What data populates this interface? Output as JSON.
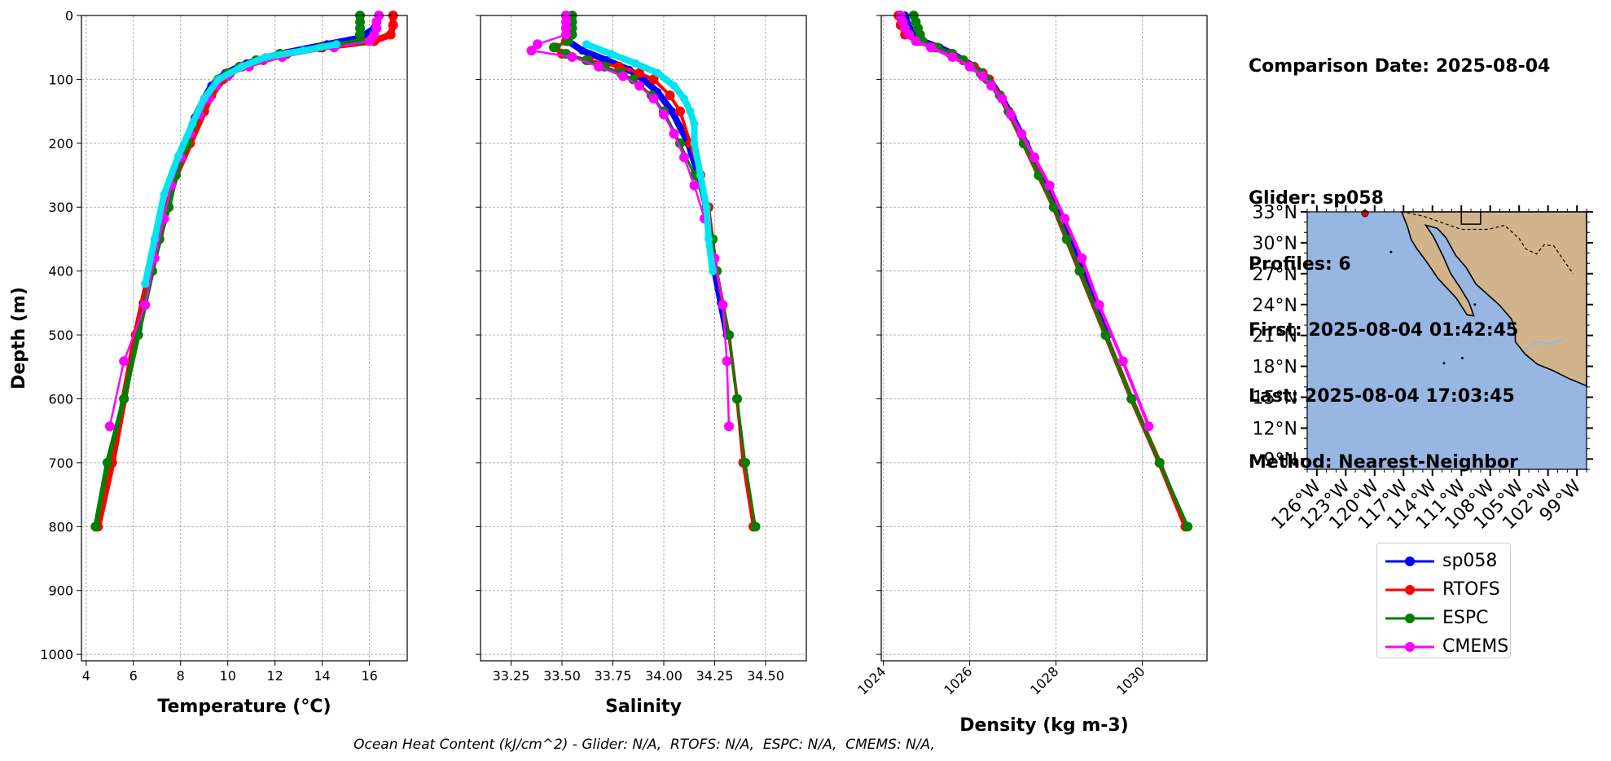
{
  "info": {
    "comparison": "Comparison Date: 2025-08-04",
    "glider": "Glider: sp058",
    "profiles": "Profiles: 6",
    "first": "First: 2025-08-04 01:42:45",
    "last": "Last: 2025-08-04 17:03:45",
    "method": "Method: Nearest-Neighbor"
  },
  "footnote": "Ocean Heat Content (kJ/cm^2) - Glider: N/A,  RTOFS: N/A,  ESPC: N/A,  CMEMS: N/A,",
  "legend": [
    {
      "name": "sp058",
      "color": "#0000ff"
    },
    {
      "name": "RTOFS",
      "color": "#ff0000"
    },
    {
      "name": "ESPC",
      "color": "#008000"
    },
    {
      "name": "CMEMS",
      "color": "#ff00ff"
    }
  ],
  "chart_data": [
    {
      "type": "line",
      "xlabel": "Temperature (°C)",
      "ylabel": "Depth (m)",
      "xlim": [
        3.8,
        17.6
      ],
      "ylim": [
        1010,
        0
      ],
      "xticks": [
        4,
        6,
        8,
        10,
        12,
        14,
        16
      ],
      "yticks": [
        0,
        100,
        200,
        300,
        400,
        500,
        600,
        700,
        800,
        900,
        1000
      ],
      "grid": true,
      "series": [
        {
          "name": "sp058",
          "color": "#0000ff",
          "depth": [
            0,
            20,
            35,
            45,
            60,
            75,
            90,
            110,
            130,
            160,
            200,
            250,
            300,
            350,
            400,
            450,
            500
          ],
          "values": [
            16.4,
            16.2,
            15.6,
            14.2,
            12.2,
            10.8,
            9.9,
            9.3,
            9.0,
            8.6,
            8.2,
            7.8,
            7.4,
            7.0,
            6.7,
            6.4,
            6.2
          ]
        },
        {
          "name": "RTOFS",
          "color": "#ff0000",
          "depth": [
            0,
            15,
            30,
            40,
            50,
            60,
            70,
            80,
            90,
            100,
            125,
            150,
            200,
            250,
            300,
            350,
            400,
            500,
            600,
            700,
            800
          ],
          "values": [
            17.0,
            17.0,
            16.9,
            16.2,
            14.0,
            12.5,
            11.5,
            10.6,
            10.1,
            9.8,
            9.3,
            9.0,
            8.4,
            7.8,
            7.4,
            7.1,
            6.7,
            6.1,
            5.6,
            5.1,
            4.5
          ]
        },
        {
          "name": "ESPC",
          "color": "#008000",
          "depth": [
            0,
            10,
            20,
            30,
            40,
            50,
            60,
            70,
            80,
            90,
            100,
            125,
            150,
            200,
            250,
            300,
            350,
            400,
            500,
            600,
            700,
            800
          ],
          "values": [
            15.6,
            15.6,
            15.6,
            15.6,
            15.6,
            13.9,
            12.2,
            11.2,
            10.5,
            10.0,
            9.6,
            9.2,
            8.8,
            8.3,
            7.8,
            7.5,
            7.1,
            6.8,
            6.2,
            5.6,
            4.9,
            4.4
          ]
        },
        {
          "name": "CMEMS",
          "color": "#ff00ff",
          "depth": [
            0,
            10,
            20,
            30,
            40,
            50,
            65,
            80,
            95,
            110,
            130,
            155,
            185,
            222,
            266,
            318,
            380,
            453,
            541,
            643
          ],
          "values": [
            16.4,
            16.3,
            16.3,
            16.2,
            16.0,
            14.5,
            12.3,
            10.9,
            10.0,
            9.5,
            9.2,
            8.8,
            8.4,
            8.0,
            7.6,
            7.3,
            6.9,
            6.5,
            5.6,
            5.0
          ]
        },
        {
          "name": "",
          "color": "#00e5ee",
          "depth": [
            45,
            55,
            65,
            80,
            100,
            130,
            170,
            220,
            280,
            350,
            420
          ],
          "values": [
            14.6,
            13.2,
            11.6,
            10.6,
            9.6,
            9.0,
            8.5,
            7.9,
            7.3,
            6.9,
            6.5
          ]
        }
      ]
    },
    {
      "type": "line",
      "xlabel": "Salinity",
      "ylabel": "",
      "xlim": [
        33.1,
        34.7
      ],
      "ylim": [
        1010,
        0
      ],
      "xticks": [
        33.25,
        33.5,
        33.75,
        34.0,
        34.25,
        34.5
      ],
      "yticks": [
        0,
        100,
        200,
        300,
        400,
        500,
        600,
        700,
        800,
        900,
        1000
      ],
      "grid": true,
      "series": [
        {
          "name": "sp058",
          "color": "#0000ff",
          "depth": [
            0,
            20,
            40,
            55,
            70,
            85,
            100,
            120,
            150,
            200,
            250,
            300,
            350,
            400,
            450,
            500
          ],
          "values": [
            33.53,
            33.53,
            33.53,
            33.6,
            33.72,
            33.83,
            33.9,
            33.97,
            34.04,
            34.12,
            34.17,
            34.21,
            34.23,
            34.25,
            34.28,
            34.31
          ]
        },
        {
          "name": "RTOFS",
          "color": "#ff0000",
          "depth": [
            0,
            20,
            40,
            50,
            60,
            70,
            80,
            90,
            100,
            125,
            150,
            200,
            250,
            300,
            350,
            400,
            500,
            600,
            700,
            800
          ],
          "values": [
            33.52,
            33.52,
            33.52,
            33.47,
            33.5,
            33.63,
            33.78,
            33.88,
            33.95,
            34.03,
            34.08,
            34.13,
            34.18,
            34.22,
            34.24,
            34.26,
            34.32,
            34.36,
            34.39,
            34.44
          ]
        },
        {
          "name": "ESPC",
          "color": "#008000",
          "depth": [
            0,
            10,
            20,
            30,
            40,
            50,
            60,
            70,
            80,
            90,
            100,
            125,
            150,
            200,
            250,
            300,
            350,
            400,
            500,
            600,
            700,
            800
          ],
          "values": [
            33.55,
            33.55,
            33.55,
            33.55,
            33.53,
            33.46,
            33.52,
            33.62,
            33.71,
            33.79,
            33.85,
            33.94,
            34.0,
            34.08,
            34.15,
            34.21,
            34.24,
            34.26,
            34.32,
            34.36,
            34.4,
            34.45
          ]
        },
        {
          "name": "CMEMS",
          "color": "#ff00ff",
          "depth": [
            0,
            10,
            20,
            30,
            45,
            55,
            65,
            80,
            95,
            110,
            130,
            155,
            185,
            222,
            266,
            318,
            380,
            453,
            541,
            643
          ],
          "values": [
            33.52,
            33.52,
            33.52,
            33.52,
            33.38,
            33.35,
            33.55,
            33.68,
            33.8,
            33.88,
            33.95,
            34.0,
            34.05,
            34.1,
            34.15,
            34.2,
            34.25,
            34.29,
            34.31,
            34.32
          ]
        },
        {
          "name": "",
          "color": "#00e5ee",
          "depth": [
            45,
            60,
            75,
            90,
            110,
            130,
            150,
            170,
            200,
            250,
            300,
            350,
            400
          ],
          "values": [
            33.62,
            33.74,
            33.86,
            33.97,
            34.05,
            34.1,
            34.13,
            34.15,
            34.15,
            34.18,
            34.21,
            34.22,
            34.24
          ]
        }
      ]
    },
    {
      "type": "line",
      "xlabel": "Density (kg m-3)",
      "ylabel": "",
      "xlim": [
        1023.95,
        1031.5
      ],
      "ylim": [
        1010,
        0
      ],
      "xticks": [
        1024,
        1026,
        1028,
        1030
      ],
      "yticks": [
        0,
        100,
        200,
        300,
        400,
        500,
        600,
        700,
        800,
        900,
        1000
      ],
      "grid": true,
      "series": [
        {
          "name": "sp058",
          "color": "#0000ff",
          "depth": [
            0,
            20,
            40,
            50,
            60,
            80,
            100,
            130,
            160,
            200,
            250,
            300,
            350,
            400,
            450,
            500
          ],
          "values": [
            1024.5,
            1024.6,
            1024.9,
            1025.3,
            1025.6,
            1026.1,
            1026.45,
            1026.75,
            1027.0,
            1027.3,
            1027.65,
            1028.0,
            1028.3,
            1028.6,
            1028.9,
            1029.2
          ]
        },
        {
          "name": "RTOFS",
          "color": "#ff0000",
          "depth": [
            0,
            15,
            30,
            40,
            50,
            60,
            70,
            80,
            90,
            100,
            125,
            150,
            200,
            250,
            300,
            350,
            400,
            500,
            600,
            700,
            800
          ],
          "values": [
            1024.35,
            1024.4,
            1024.5,
            1024.8,
            1025.2,
            1025.55,
            1025.85,
            1026.1,
            1026.3,
            1026.45,
            1026.7,
            1026.9,
            1027.25,
            1027.6,
            1027.95,
            1028.25,
            1028.55,
            1029.15,
            1029.75,
            1030.4,
            1031.0
          ]
        },
        {
          "name": "ESPC",
          "color": "#008000",
          "depth": [
            0,
            10,
            20,
            30,
            40,
            50,
            60,
            70,
            80,
            90,
            100,
            125,
            150,
            200,
            250,
            300,
            350,
            400,
            500,
            600,
            700,
            800
          ],
          "values": [
            1024.7,
            1024.75,
            1024.8,
            1024.85,
            1024.9,
            1025.25,
            1025.6,
            1025.85,
            1026.05,
            1026.25,
            1026.4,
            1026.7,
            1026.9,
            1027.25,
            1027.6,
            1027.95,
            1028.25,
            1028.55,
            1029.15,
            1029.75,
            1030.4,
            1031.05
          ]
        },
        {
          "name": "CMEMS",
          "color": "#ff00ff",
          "depth": [
            0,
            10,
            20,
            30,
            40,
            50,
            65,
            80,
            95,
            110,
            130,
            155,
            185,
            222,
            266,
            318,
            380,
            453,
            541,
            643
          ],
          "values": [
            1024.4,
            1024.45,
            1024.5,
            1024.6,
            1024.75,
            1025.1,
            1025.6,
            1026.0,
            1026.3,
            1026.5,
            1026.75,
            1026.95,
            1027.2,
            1027.5,
            1027.85,
            1028.2,
            1028.6,
            1029.0,
            1029.55,
            1030.15
          ]
        }
      ]
    },
    {
      "type": "map",
      "lat_ticks": [
        "33°N",
        "30°N",
        "27°N",
        "24°N",
        "21°N",
        "18°N",
        "15°N",
        "12°N",
        "9°N"
      ],
      "lon_ticks": [
        "126°W",
        "123°W",
        "120°W",
        "117°W",
        "114°W",
        "111°W",
        "108°W",
        "105°W",
        "102°W",
        "99°W"
      ],
      "lat_range": [
        8,
        33
      ],
      "lon_range": [
        -127,
        -98
      ],
      "ocean_color": "#97b6e1",
      "land_color": "#d2b48c",
      "glider_position": [
        -121.0,
        33.0
      ]
    }
  ]
}
